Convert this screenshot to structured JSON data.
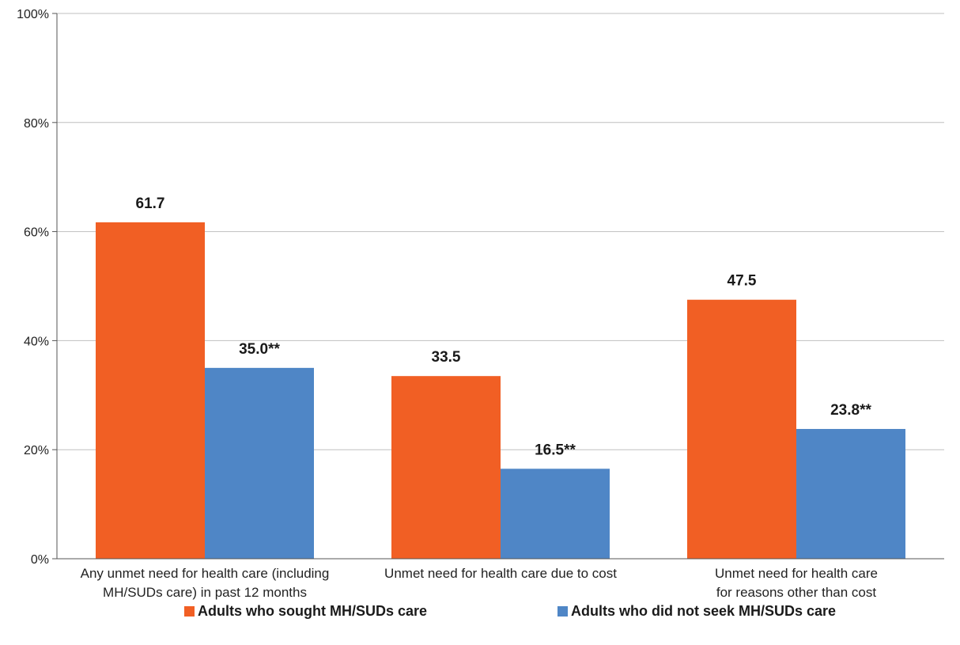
{
  "chart_data": {
    "type": "bar",
    "categories": [
      [
        "Any unmet need for health care (including",
        "MH/SUDs care) in past 12 months"
      ],
      [
        "Unmet need for health care due to cost"
      ],
      [
        "Unmet need for health care",
        "for reasons other than cost"
      ]
    ],
    "series": [
      {
        "name": "Adults who sought MH/SUDs care",
        "color": "#f15f24",
        "values": [
          61.7,
          33.5,
          47.5
        ],
        "labels": [
          "61.7",
          "33.5",
          "47.5"
        ]
      },
      {
        "name": "Adults who did not seek MH/SUDs care",
        "color": "#4f86c6",
        "values": [
          35.0,
          16.5,
          23.8
        ],
        "labels": [
          "35.0**",
          "16.5**",
          "23.8**"
        ]
      }
    ],
    "ylim": [
      0,
      100
    ],
    "yticks": [
      0,
      20,
      40,
      60,
      80,
      100
    ],
    "ytick_labels": [
      "0%",
      "20%",
      "40%",
      "60%",
      "80%",
      "100%"
    ],
    "grid": true,
    "legend_position": "bottom"
  }
}
